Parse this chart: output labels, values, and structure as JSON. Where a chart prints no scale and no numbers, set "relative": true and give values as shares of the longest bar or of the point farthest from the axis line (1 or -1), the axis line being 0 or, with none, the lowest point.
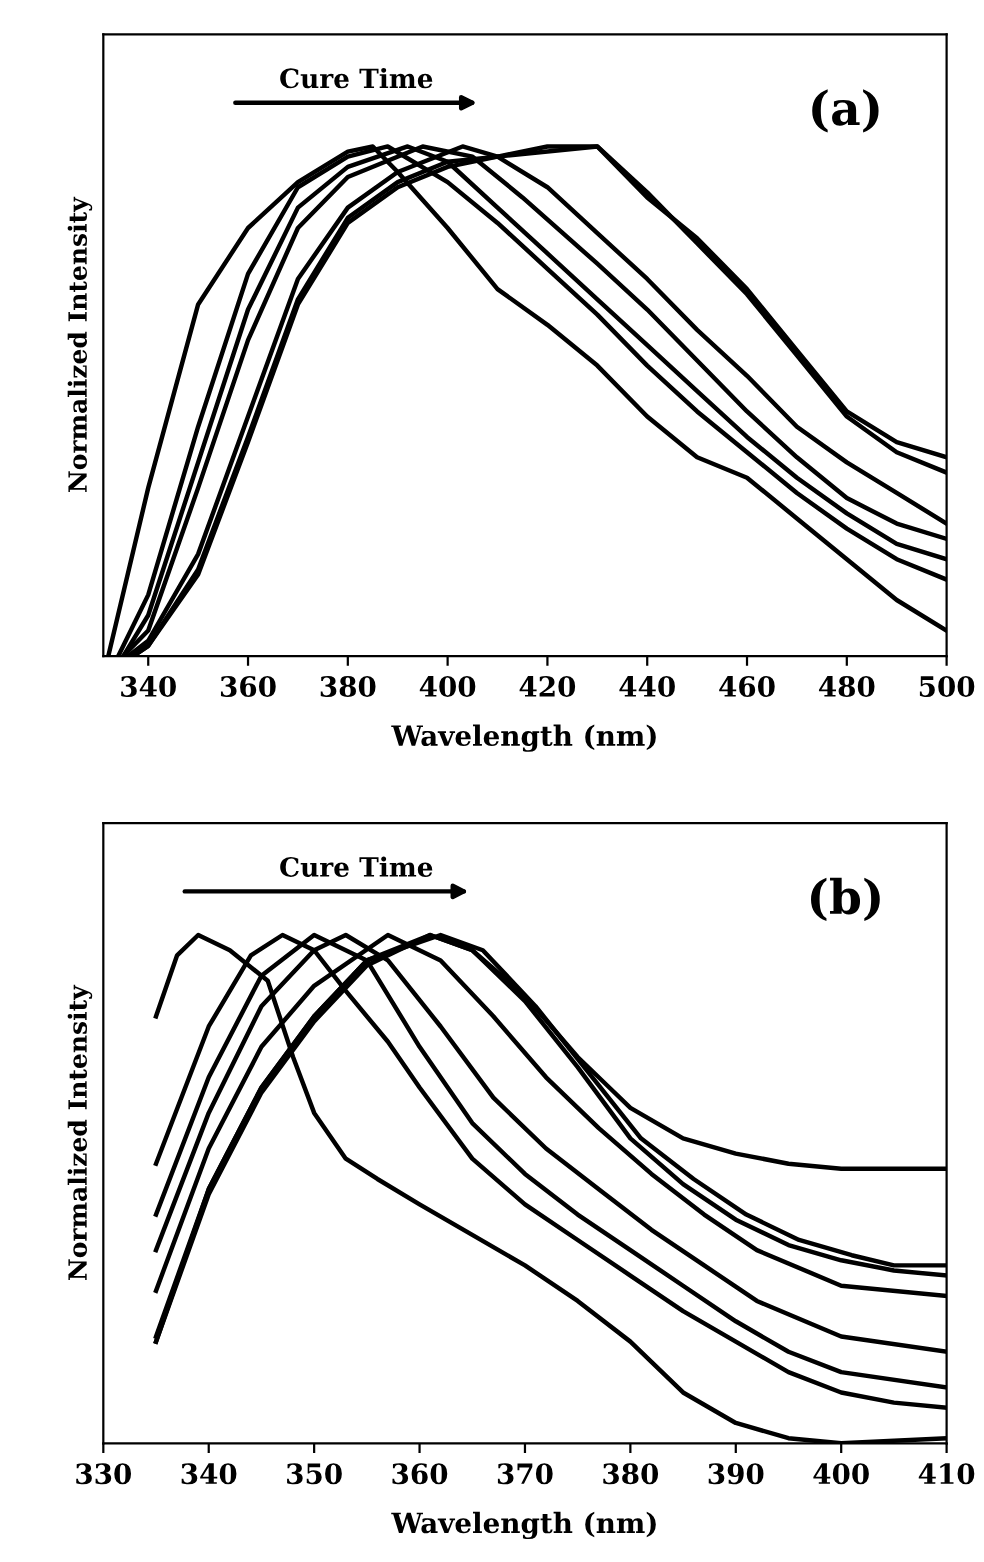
{
  "chart_data": [
    {
      "type": "line",
      "relative": true,
      "xlabel": "Wavelength (nm)",
      "ylabel": "Normalized Intensity",
      "xlim": [
        331,
        500
      ],
      "xticks": [
        340,
        360,
        380,
        400,
        420,
        440,
        460,
        480,
        500
      ],
      "grid": false,
      "legend": false,
      "line_style": "solid",
      "annotations": [
        "Cure Time",
        "(a)"
      ],
      "series": [
        {
          "color": "#000000",
          "x": [
            332,
            340,
            350,
            360,
            370,
            380,
            385,
            390,
            400,
            410,
            420,
            430,
            440,
            450,
            460,
            470,
            480,
            490,
            500
          ],
          "values": [
            0,
            0.33,
            0.69,
            0.84,
            0.93,
            0.99,
            1.0,
            0.95,
            0.84,
            0.72,
            0.65,
            0.57,
            0.47,
            0.39,
            0.35,
            0.27,
            0.19,
            0.11,
            0.05
          ]
        },
        {
          "color": "#000000",
          "x": [
            334,
            340,
            350,
            360,
            370,
            380,
            388,
            400,
            410,
            420,
            430,
            440,
            450,
            460,
            470,
            480,
            490,
            500
          ],
          "values": [
            0,
            0.12,
            0.45,
            0.75,
            0.92,
            0.98,
            1.0,
            0.93,
            0.85,
            0.76,
            0.67,
            0.57,
            0.48,
            0.4,
            0.32,
            0.25,
            0.19,
            0.15
          ]
        },
        {
          "color": "#000000",
          "x": [
            335,
            340,
            350,
            360,
            370,
            380,
            392,
            400,
            410,
            420,
            430,
            440,
            450,
            460,
            470,
            480,
            490,
            500
          ],
          "values": [
            0,
            0.08,
            0.38,
            0.68,
            0.88,
            0.96,
            1.0,
            0.97,
            0.88,
            0.79,
            0.7,
            0.61,
            0.52,
            0.43,
            0.35,
            0.28,
            0.22,
            0.19
          ]
        },
        {
          "color": "#000000",
          "x": [
            335,
            340,
            350,
            360,
            370,
            380,
            395,
            405,
            415,
            430,
            440,
            450,
            460,
            470,
            480,
            490,
            500
          ],
          "values": [
            0,
            0.05,
            0.33,
            0.62,
            0.84,
            0.94,
            1.0,
            0.98,
            0.9,
            0.77,
            0.68,
            0.58,
            0.48,
            0.39,
            0.31,
            0.26,
            0.23
          ]
        },
        {
          "color": "#000000",
          "x": [
            336,
            340,
            350,
            360,
            370,
            380,
            390,
            403,
            410,
            420,
            430,
            440,
            450,
            460,
            470,
            480,
            490,
            500
          ],
          "values": [
            0,
            0.03,
            0.2,
            0.47,
            0.74,
            0.88,
            0.95,
            1.0,
            0.98,
            0.92,
            0.83,
            0.74,
            0.64,
            0.55,
            0.45,
            0.38,
            0.32,
            0.26
          ]
        },
        {
          "color": "#000000",
          "x": [
            337,
            340,
            350,
            360,
            370,
            380,
            390,
            400,
            410,
            420,
            430,
            440,
            450,
            460,
            470,
            480,
            490,
            500
          ],
          "values": [
            0,
            0.02,
            0.17,
            0.43,
            0.7,
            0.86,
            0.93,
            0.97,
            0.98,
            1.0,
            1.0,
            0.9,
            0.82,
            0.72,
            0.6,
            0.48,
            0.42,
            0.39
          ]
        },
        {
          "color": "#000000",
          "x": [
            337,
            340,
            350,
            360,
            370,
            380,
            390,
            400,
            410,
            420,
            430,
            440,
            450,
            460,
            470,
            480,
            490,
            500
          ],
          "values": [
            0,
            0.02,
            0.16,
            0.42,
            0.69,
            0.85,
            0.92,
            0.96,
            0.98,
            0.99,
            1.0,
            0.91,
            0.81,
            0.71,
            0.59,
            0.47,
            0.4,
            0.36
          ]
        }
      ]
    },
    {
      "type": "line",
      "relative": true,
      "xlabel": "Wavelength (nm)",
      "ylabel": "Normalized Intensity",
      "xlim": [
        330,
        410
      ],
      "xticks": [
        330,
        340,
        350,
        360,
        370,
        380,
        390,
        400,
        410
      ],
      "grid": false,
      "legend": false,
      "line_style": "solid",
      "annotations": [
        "Cure Time",
        "(b)"
      ],
      "series": [
        {
          "color": "#000000",
          "x": [
            335,
            337,
            339,
            342,
            345.6,
            348,
            350,
            353,
            356,
            360,
            365,
            370,
            375,
            380,
            385,
            390,
            395,
            400,
            410
          ],
          "values": [
            0.84,
            0.96,
            1.0,
            0.97,
            0.91,
            0.76,
            0.65,
            0.56,
            0.52,
            0.47,
            0.41,
            0.35,
            0.28,
            0.2,
            0.1,
            0.04,
            0.01,
            0.0,
            0.01
          ]
        },
        {
          "color": "#000000",
          "x": [
            335,
            340,
            344,
            347,
            350,
            353,
            357,
            360,
            365,
            370,
            375,
            380,
            385,
            390,
            395,
            400,
            405,
            410
          ],
          "values": [
            0.55,
            0.82,
            0.96,
            1.0,
            0.97,
            0.89,
            0.79,
            0.7,
            0.56,
            0.47,
            0.4,
            0.33,
            0.26,
            0.2,
            0.14,
            0.1,
            0.08,
            0.07
          ]
        },
        {
          "color": "#000000",
          "x": [
            335,
            340,
            345,
            350,
            355,
            360,
            365,
            370,
            375,
            380,
            385,
            390,
            395,
            400,
            410
          ],
          "values": [
            0.45,
            0.72,
            0.92,
            1.0,
            0.95,
            0.78,
            0.63,
            0.53,
            0.45,
            0.38,
            0.31,
            0.24,
            0.18,
            0.14,
            0.11
          ]
        },
        {
          "color": "#000000",
          "x": [
            335,
            340,
            345,
            350,
            353,
            357,
            362,
            367,
            372,
            377,
            382,
            387,
            392,
            400,
            410
          ],
          "values": [
            0.38,
            0.65,
            0.86,
            0.97,
            1.0,
            0.95,
            0.82,
            0.68,
            0.58,
            0.5,
            0.42,
            0.35,
            0.28,
            0.21,
            0.18
          ]
        },
        {
          "color": "#000000",
          "x": [
            335,
            340,
            345,
            350,
            357,
            362,
            367,
            372,
            377,
            382,
            387,
            392,
            400,
            410
          ],
          "values": [
            0.3,
            0.58,
            0.78,
            0.9,
            1.0,
            0.95,
            0.84,
            0.72,
            0.62,
            0.53,
            0.45,
            0.38,
            0.31,
            0.29
          ]
        },
        {
          "color": "#000000",
          "x": [
            335,
            340,
            345,
            350,
            355,
            361,
            365,
            370,
            375,
            380,
            385,
            390,
            395,
            400,
            405,
            410
          ],
          "values": [
            0.2,
            0.5,
            0.7,
            0.84,
            0.95,
            1.0,
            0.97,
            0.87,
            0.74,
            0.6,
            0.51,
            0.44,
            0.39,
            0.36,
            0.34,
            0.33
          ]
        },
        {
          "color": "#000000",
          "x": [
            335,
            340,
            345,
            350,
            355,
            362,
            366,
            371,
            376,
            381,
            386,
            391,
            396,
            401,
            405,
            410
          ],
          "values": [
            0.21,
            0.5,
            0.7,
            0.84,
            0.95,
            1.0,
            0.97,
            0.86,
            0.73,
            0.6,
            0.52,
            0.45,
            0.4,
            0.37,
            0.35,
            0.35
          ]
        },
        {
          "color": "#000000",
          "x": [
            335,
            340,
            345,
            350,
            355,
            361,
            365,
            370,
            375,
            378,
            380,
            385,
            390,
            395,
            400,
            410
          ],
          "values": [
            0.2,
            0.49,
            0.69,
            0.83,
            0.94,
            1.0,
            0.97,
            0.88,
            0.76,
            0.7,
            0.66,
            0.6,
            0.57,
            0.55,
            0.54,
            0.54
          ]
        }
      ]
    }
  ]
}
